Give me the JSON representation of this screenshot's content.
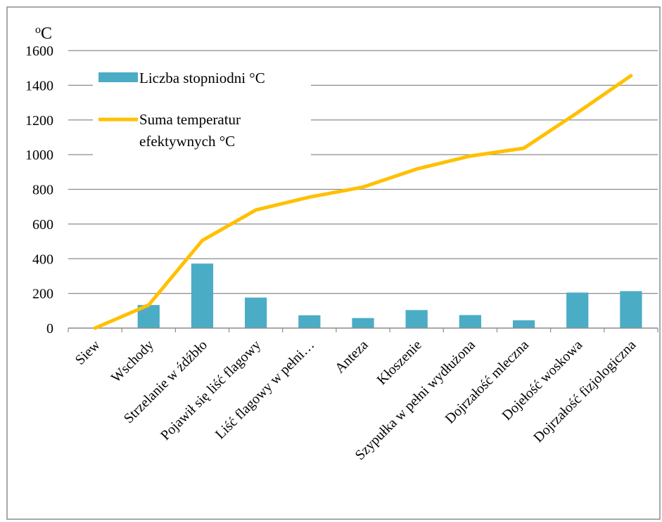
{
  "chart_data": {
    "type": "bar",
    "ylabel_unit": "°C",
    "ylabel_unit_parts": {
      "superscript": "o",
      "main": "C"
    },
    "ylim": [
      0,
      1600
    ],
    "yticks": [
      0,
      200,
      400,
      600,
      800,
      1000,
      1200,
      1400,
      1600
    ],
    "grid": true,
    "legend_position": "top-left",
    "categories": [
      "Siew",
      "Wschody",
      "Strzelanie w źdźbło",
      "Pojawił się liść flagowy",
      "Liść flagowy w pełni…",
      "Anteza",
      "Kłoszenie",
      "Szypułka w pełni wydłużona",
      "Dojrzałość mleczna",
      "Dojełość woskowa",
      "Dojrzałość fizjologiczna"
    ],
    "series": [
      {
        "name": "Liczba stopniodni °C",
        "kind": "bar",
        "color": "#4BACC6",
        "values": [
          0,
          133,
          372,
          176,
          74,
          58,
          104,
          75,
          45,
          205,
          213
        ]
      },
      {
        "name": "Suma temperatur efektywnych °C",
        "name_lines": [
          "Suma temperatur",
          "efektywnych °C"
        ],
        "kind": "line",
        "color": "#FFC000",
        "values": [
          0,
          133,
          505,
          681,
          755,
          813,
          917,
          992,
          1037,
          1242,
          1455
        ]
      }
    ]
  }
}
